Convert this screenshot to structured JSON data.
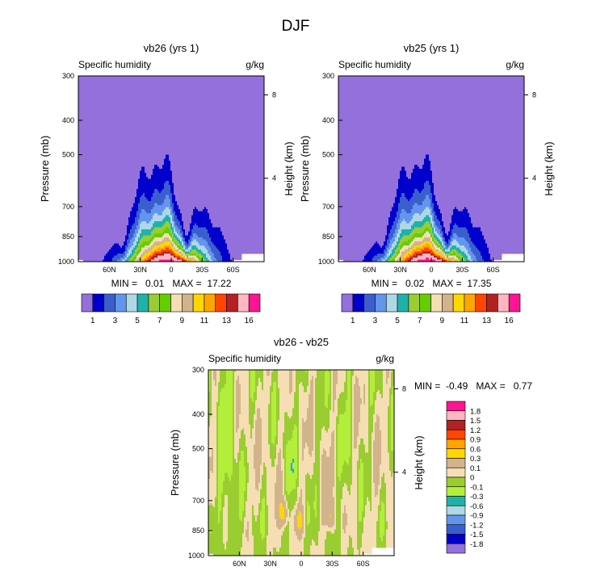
{
  "figure_title": "DJF",
  "colors": {
    "seq": [
      "#9370db",
      "#0000cd",
      "#3a5fcd",
      "#6495ed",
      "#add8e6",
      "#20b2aa",
      "#9acd32",
      "#66cd00",
      "#f5deb3",
      "#d2b48c",
      "#ffd700",
      "#ffa500",
      "#ff4500",
      "#b22222",
      "#ffb6c1",
      "#ff1493"
    ],
    "diff": [
      "#9370db",
      "#0000cd",
      "#3a5fcd",
      "#6495ed",
      "#add8e6",
      "#20b2aa",
      "#b3ee3a",
      "#9acd32",
      "#f5deb3",
      "#d2b48c",
      "#ffd700",
      "#ffa500",
      "#ff4500",
      "#b22222",
      "#ffb6c1",
      "#ff1493"
    ]
  },
  "chart_data": [
    {
      "type": "heatmap",
      "title": "vb26 (yrs 1)",
      "left_label": "Specific humidity",
      "right_label": "g/kg",
      "ylabel": "Pressure (mb)",
      "ylabel_right": "Height (km)",
      "yticks": [
        "300",
        "400",
        "500",
        "700",
        "850",
        "1000"
      ],
      "ytick_values": [
        300,
        400,
        500,
        700,
        850,
        1000
      ],
      "yticks_right": [
        "8",
        "4"
      ],
      "ytick_right_km": [
        8,
        4
      ],
      "xticks": [
        "60N",
        "30N",
        "0",
        "30S",
        "60S"
      ],
      "xtick_lat": [
        60,
        30,
        0,
        -30,
        -60
      ],
      "xlim": [
        90,
        -90
      ],
      "ylim": [
        1000,
        300
      ],
      "stats": "MIN =   0.01   MAX =  17.22",
      "min": 0.01,
      "max": 17.22,
      "levels": [
        1,
        2,
        3,
        4,
        5,
        6,
        7,
        8,
        9,
        10,
        11,
        12,
        13,
        14,
        16
      ],
      "colorbar_labels": [
        "1",
        "3",
        "5",
        "7",
        "9",
        "11",
        "13",
        "16"
      ],
      "colorbar_label_index": [
        0,
        2,
        4,
        6,
        8,
        10,
        12,
        14
      ]
    },
    {
      "type": "heatmap",
      "title": "vb25 (yrs 1)",
      "left_label": "Specific humidity",
      "right_label": "g/kg",
      "ylabel": "Pressure (mb)",
      "ylabel_right": "Height (km)",
      "yticks": [
        "300",
        "400",
        "500",
        "700",
        "850",
        "1000"
      ],
      "ytick_values": [
        300,
        400,
        500,
        700,
        850,
        1000
      ],
      "yticks_right": [
        "8",
        "4"
      ],
      "ytick_right_km": [
        8,
        4
      ],
      "xticks": [
        "60N",
        "30N",
        "0",
        "30S",
        "60S"
      ],
      "xtick_lat": [
        60,
        30,
        0,
        -30,
        -60
      ],
      "xlim": [
        90,
        -90
      ],
      "ylim": [
        1000,
        300
      ],
      "stats": "MIN =   0.02   MAX =  17.35",
      "min": 0.02,
      "max": 17.35,
      "levels": [
        1,
        2,
        3,
        4,
        5,
        6,
        7,
        8,
        9,
        10,
        11,
        12,
        13,
        14,
        16
      ],
      "colorbar_labels": [
        "1",
        "3",
        "5",
        "7",
        "9",
        "11",
        "13",
        "16"
      ],
      "colorbar_label_index": [
        0,
        2,
        4,
        6,
        8,
        10,
        12,
        14
      ]
    },
    {
      "type": "heatmap",
      "title": "vb26 - vb25",
      "left_label": "Specific humidity",
      "right_label": "g/kg",
      "ylabel": "Pressure (mb)",
      "ylabel_right": "Height (km)",
      "yticks": [
        "300",
        "400",
        "500",
        "700",
        "850",
        "1000"
      ],
      "ytick_values": [
        300,
        400,
        500,
        700,
        850,
        1000
      ],
      "yticks_right": [
        "8",
        "4"
      ],
      "ytick_right_km": [
        8,
        4
      ],
      "xticks": [
        "60N",
        "30N",
        "0",
        "30S",
        "60S"
      ],
      "xtick_lat": [
        60,
        30,
        0,
        -30,
        -60
      ],
      "xlim": [
        90,
        -90
      ],
      "ylim": [
        1000,
        300
      ],
      "stats": "MIN =  -0.49   MAX =   0.77",
      "min": -0.49,
      "max": 0.77,
      "levels": [
        -1.8,
        -1.5,
        -1.2,
        -0.9,
        -0.6,
        -0.3,
        -0.1,
        0,
        0.1,
        0.3,
        0.6,
        0.9,
        1.2,
        1.5,
        1.8
      ],
      "colorbar_labels": [
        "1.8",
        "1.5",
        "1.2",
        "0.9",
        "0.6",
        "0.3",
        "0.1",
        "0",
        "-0.1",
        "-0.3",
        "-0.6",
        "-0.9",
        "-1.2",
        "-1.5",
        "-1.8"
      ]
    }
  ]
}
